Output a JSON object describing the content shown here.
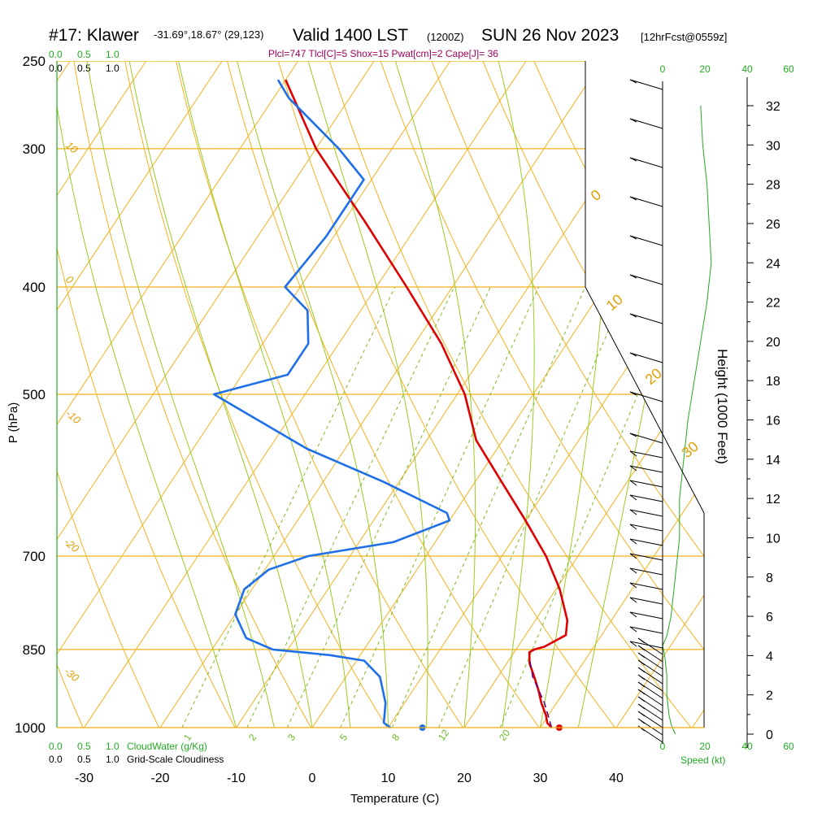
{
  "header": {
    "station": "#17: Klawer",
    "coords": "-31.69°,18.67° (29,123)",
    "valid": "Valid 1400 LST",
    "utc": "(1200Z)",
    "date": "SUN 26 Nov 2023",
    "fcst": "[12hrFcst@0559z]",
    "params": "Plcl=747 Tlcl[C]=5 Shox=15 Pwat[cm]=2 Cape[J]= 36"
  },
  "scales": {
    "cloudwater_ticks": [
      "0.0",
      "0.5",
      "1.0"
    ],
    "cloudiness_ticks": [
      "0.0",
      "0.5",
      "1.0"
    ],
    "cloudwater_label": "CloudWater (g/Kg)",
    "cloudiness_label": "Grid-Scale Cloudiness",
    "speed_ticks": [
      "0",
      "20",
      "40",
      "60"
    ],
    "speed_label": "Speed (kt)"
  },
  "chart_data": {
    "type": "line",
    "title": "Skew-T Log-P Sounding",
    "xlabel": "Temperature (C)",
    "ylabel": "P (hPa)",
    "right_axis_label": "Height (1000 Feet)",
    "x_ticks": [
      "-30",
      "-20",
      "-10",
      "0",
      "10",
      "20",
      "30",
      "40"
    ],
    "y_ticks": [
      "250",
      "300",
      "400",
      "500",
      "700",
      "850",
      "1000"
    ],
    "height_ticks": [
      "0",
      "2",
      "4",
      "6",
      "8",
      "10",
      "12",
      "14",
      "16",
      "18",
      "20",
      "22",
      "24",
      "26",
      "28",
      "30",
      "32"
    ],
    "dry_adiabat_labels": [
      "10",
      "0",
      "-10",
      "-20",
      "-30",
      "0",
      "10",
      "20",
      "30"
    ],
    "mixing_ratio_labels": [
      "1",
      "2",
      "3",
      "5",
      "8",
      "12",
      "20"
    ],
    "series": [
      {
        "name": "Temperature",
        "color": "#dd0000",
        "pressure_hPa": [
          1000,
          990,
          975,
          950,
          925,
          900,
          875,
          855,
          850,
          845,
          825,
          800,
          750,
          700,
          650,
          600,
          550,
          500,
          450,
          400,
          350,
          300,
          260
        ],
        "temperature_C": [
          31.5,
          30.5,
          29.7,
          28.0,
          26.5,
          24.8,
          23.0,
          22.0,
          22.4,
          23.5,
          25.3,
          24.2,
          20.5,
          15.8,
          10.0,
          3.5,
          -3.5,
          -9.0,
          -16.5,
          -26.0,
          -37.0,
          -50.0,
          -60.0
        ]
      },
      {
        "name": "Dewpoint",
        "color": "#1e6fe8",
        "pressure_hPa": [
          1000,
          990,
          950,
          900,
          870,
          860,
          850,
          830,
          790,
          750,
          720,
          700,
          680,
          650,
          640,
          600,
          560,
          500,
          480,
          450,
          420,
          400,
          360,
          340,
          320,
          300,
          270,
          260
        ],
        "dewpoint_C": [
          10.3,
          9.0,
          7.5,
          4.5,
          1.0,
          -4.0,
          -12.0,
          -16.5,
          -20.0,
          -21.0,
          -19.5,
          -15.5,
          -5.5,
          0.0,
          -1.0,
          -12.0,
          -25.0,
          -42.0,
          -34.0,
          -34.0,
          -37.0,
          -42.0,
          -41.0,
          -41.0,
          -41.0,
          -47.0,
          -58.0,
          -61.0
        ]
      },
      {
        "name": "Parcel",
        "color": "#5a0080",
        "pressure_hPa": [
          1000,
          950,
          900,
          870
        ],
        "temperature_C": [
          31.5,
          28.4,
          24.6,
          22.8
        ]
      }
    ],
    "surface_points": [
      {
        "name": "surface-temp",
        "temperature_C": 32.5,
        "pressure_hPa": 1000,
        "color": "#dd0000"
      },
      {
        "name": "surface-dewpoint",
        "temperature_C": 14.5,
        "pressure_hPa": 1000,
        "color": "#1e6fe8"
      }
    ],
    "cloud_cover": [],
    "wind_speed_profile": {
      "height_kft": [
        0,
        0.5,
        1,
        2,
        3,
        4,
        4.5,
        5,
        6,
        8,
        10,
        12,
        14,
        16,
        18,
        20,
        22,
        24,
        26,
        28,
        30,
        32
      ],
      "speed_kt": [
        6,
        4,
        3,
        2,
        2,
        1,
        0,
        2,
        4,
        6,
        8,
        8,
        10,
        12,
        15,
        18,
        21,
        23,
        22,
        21,
        19,
        18
      ]
    }
  }
}
